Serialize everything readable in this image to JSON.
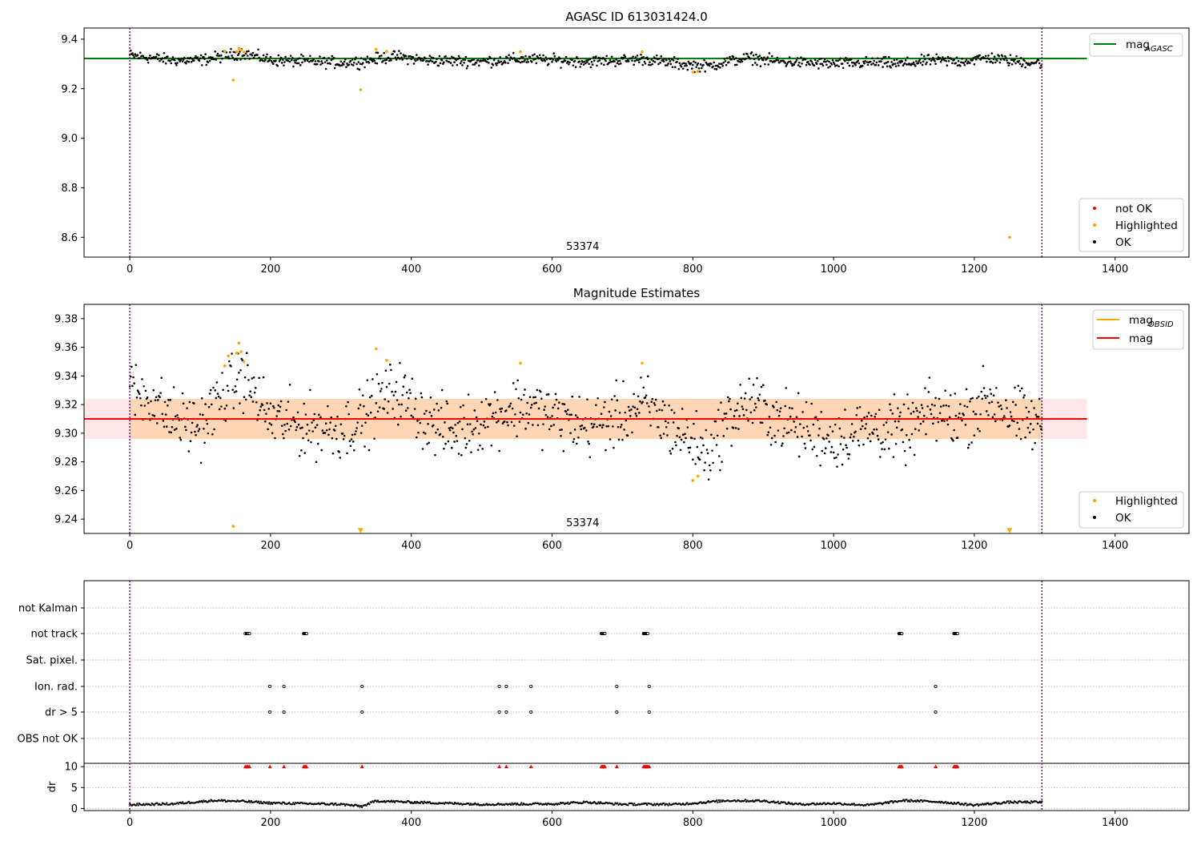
{
  "figure": {
    "obs_label": "53374",
    "vline_color": "#800080"
  },
  "chart_data": [
    {
      "type": "scatter",
      "title": "AGASC ID 613031424.0",
      "xlim": [
        -65,
        1505
      ],
      "ylim": [
        8.52,
        9.445
      ],
      "xticks": [
        0,
        200,
        400,
        600,
        800,
        1000,
        1200,
        1400
      ],
      "yticks": [
        8.6,
        8.8,
        9.0,
        9.2,
        9.4
      ],
      "ytick_labels": [
        "8.6",
        "8.8",
        "9.0",
        "9.2",
        "9.4"
      ],
      "vlines": [
        0,
        1296
      ],
      "hline": {
        "value": 9.322,
        "x_range": [
          -65,
          1360
        ],
        "color": "#008000"
      },
      "legend_lines": [
        {
          "base": "mag",
          "sub": "AGASC",
          "color": "#008000"
        }
      ],
      "legend_points": [
        {
          "label": "not OK",
          "color": "#ff0000"
        },
        {
          "label": "Highlighted",
          "color": "#ffa500"
        },
        {
          "label": "OK",
          "color": "#000000"
        }
      ],
      "series": [
        {
          "name": "OK",
          "color": "#000000",
          "trend": [
            [
              0,
              9.335
            ],
            [
              30,
              9.325
            ],
            [
              60,
              9.315
            ],
            [
              100,
              9.315
            ],
            [
              130,
              9.33
            ],
            [
              160,
              9.345
            ],
            [
              200,
              9.315
            ],
            [
              250,
              9.31
            ],
            [
              300,
              9.305
            ],
            [
              330,
              9.31
            ],
            [
              360,
              9.325
            ],
            [
              380,
              9.33
            ],
            [
              420,
              9.315
            ],
            [
              500,
              9.31
            ],
            [
              560,
              9.32
            ],
            [
              600,
              9.315
            ],
            [
              650,
              9.31
            ],
            [
              700,
              9.315
            ],
            [
              730,
              9.32
            ],
            [
              780,
              9.3
            ],
            [
              800,
              9.295
            ],
            [
              820,
              9.29
            ],
            [
              850,
              9.31
            ],
            [
              880,
              9.325
            ],
            [
              920,
              9.31
            ],
            [
              1000,
              9.3
            ],
            [
              1060,
              9.305
            ],
            [
              1100,
              9.3
            ],
            [
              1140,
              9.315
            ],
            [
              1180,
              9.31
            ],
            [
              1220,
              9.325
            ],
            [
              1260,
              9.31
            ],
            [
              1296,
              9.305
            ]
          ],
          "spread": 0.03
        },
        {
          "name": "Highlighted",
          "color": "#ffa500",
          "points": [
            [
              135,
              9.352
            ],
            [
              147,
              9.235
            ],
            [
              152,
              9.35
            ],
            [
              155,
              9.362
            ],
            [
              158,
              9.356
            ],
            [
              162,
              9.348
            ],
            [
              328,
              9.196
            ],
            [
              350,
              9.359
            ],
            [
              365,
              9.351
            ],
            [
              555,
              9.349
            ],
            [
              728,
              9.349
            ],
            [
              800,
              9.267
            ],
            [
              807,
              9.27
            ],
            [
              1250,
              8.6
            ]
          ]
        }
      ]
    },
    {
      "type": "scatter",
      "title": "Magnitude Estimates",
      "xlim": [
        -65,
        1505
      ],
      "ylim": [
        9.23,
        9.39
      ],
      "xticks": [
        0,
        200,
        400,
        600,
        800,
        1000,
        1200,
        1400
      ],
      "yticks": [
        9.24,
        9.26,
        9.28,
        9.3,
        9.32,
        9.34,
        9.36,
        9.38
      ],
      "ytick_labels": [
        "9.24",
        "9.26",
        "9.28",
        "9.30",
        "9.32",
        "9.34",
        "9.36",
        "9.38"
      ],
      "vlines": [
        0,
        1296
      ],
      "hline": {
        "value": 9.31,
        "x_range": [
          -65,
          1360
        ],
        "color": "#ff0000"
      },
      "bands": [
        {
          "y": [
            9.296,
            9.324
          ],
          "x_range": [
            -65,
            1360
          ],
          "color": "#ffb6c1",
          "opacity": 0.35
        },
        {
          "y": [
            9.296,
            9.324
          ],
          "x_range": [
            0,
            1296
          ],
          "color": "#ffa500",
          "opacity": 0.22
        }
      ],
      "legend_lines": [
        {
          "base": "mag",
          "sub": "OBSID",
          "color": "#ffa500"
        },
        {
          "base": "mag",
          "sub": "",
          "color": "#ff0000"
        }
      ],
      "legend_points": [
        {
          "label": "Highlighted",
          "color": "#ffa500"
        },
        {
          "label": "OK",
          "color": "#000000"
        }
      ],
      "series": [
        {
          "name": "OK",
          "color": "#000000",
          "trend": [
            [
              0,
              9.33
            ],
            [
              30,
              9.325
            ],
            [
              60,
              9.31
            ],
            [
              100,
              9.305
            ],
            [
              130,
              9.325
            ],
            [
              160,
              9.34
            ],
            [
              200,
              9.31
            ],
            [
              250,
              9.305
            ],
            [
              300,
              9.303
            ],
            [
              330,
              9.31
            ],
            [
              360,
              9.325
            ],
            [
              380,
              9.33
            ],
            [
              420,
              9.31
            ],
            [
              460,
              9.3
            ],
            [
              500,
              9.31
            ],
            [
              560,
              9.32
            ],
            [
              600,
              9.312
            ],
            [
              650,
              9.305
            ],
            [
              700,
              9.312
            ],
            [
              730,
              9.32
            ],
            [
              780,
              9.3
            ],
            [
              800,
              9.295
            ],
            [
              820,
              9.285
            ],
            [
              850,
              9.31
            ],
            [
              880,
              9.322
            ],
            [
              920,
              9.31
            ],
            [
              1000,
              9.296
            ],
            [
              1060,
              9.305
            ],
            [
              1100,
              9.3
            ],
            [
              1140,
              9.315
            ],
            [
              1180,
              9.31
            ],
            [
              1220,
              9.325
            ],
            [
              1260,
              9.31
            ],
            [
              1296,
              9.305
            ]
          ],
          "spread": 0.028
        },
        {
          "name": "Highlighted",
          "color": "#ffa500",
          "points": [
            [
              135,
              9.347
            ],
            [
              140,
              9.354
            ],
            [
              147,
              9.235
            ],
            [
              152,
              9.356
            ],
            [
              155,
              9.363
            ],
            [
              158,
              9.357
            ],
            [
              162,
              9.35
            ],
            [
              350,
              9.359
            ],
            [
              365,
              9.351
            ],
            [
              555,
              9.349
            ],
            [
              728,
              9.349
            ],
            [
              800,
              9.267
            ],
            [
              807,
              9.27
            ]
          ]
        },
        {
          "name": "Highlighted",
          "color": "#ffa500",
          "marker": "triangle-down",
          "points": [
            [
              328,
              9.232
            ],
            [
              1250,
              9.232
            ]
          ]
        }
      ]
    },
    {
      "type": "scatter",
      "xlim": [
        -65,
        1505
      ],
      "xticks": [
        0,
        200,
        400,
        600,
        800,
        1000,
        1200,
        1400
      ],
      "vlines": [
        0,
        1296
      ],
      "categories": [
        "not Kalman",
        "not track",
        "Sat. pixel.",
        "Ion. rad.",
        "dr > 5",
        "OBS not OK"
      ],
      "flags": {
        "not Kalman": [],
        "not track": [
          164,
          166,
          167,
          168,
          170,
          247,
          248,
          249,
          250,
          251,
          670,
          671,
          672,
          673,
          674,
          675,
          730,
          731,
          732,
          733,
          734,
          735,
          736,
          1093,
          1094,
          1095,
          1096,
          1097,
          1171,
          1172,
          1173,
          1174,
          1175,
          1176
        ],
        "Sat. pixel.": [],
        "Ion. rad.": [
          199,
          219,
          330,
          525,
          535,
          570,
          692,
          738,
          1145
        ],
        "dr > 5": [
          199,
          219,
          330,
          525,
          535,
          570,
          692,
          738,
          1145
        ],
        "OBS not OK": []
      },
      "dr": {
        "ylabel": "dr",
        "ylim": [
          -0.5,
          10.8
        ],
        "yticks": [
          0,
          5,
          10
        ],
        "ytick_labels": [
          "0",
          "5",
          "10"
        ],
        "trend": [
          [
            0,
            0.9
          ],
          [
            60,
            1.1
          ],
          [
            120,
            1.9
          ],
          [
            160,
            1.7
          ],
          [
            200,
            1.3
          ],
          [
            300,
            1.0
          ],
          [
            330,
            0.5
          ],
          [
            350,
            1.8
          ],
          [
            400,
            1.5
          ],
          [
            500,
            1.0
          ],
          [
            600,
            1.1
          ],
          [
            650,
            1.5
          ],
          [
            700,
            1.0
          ],
          [
            780,
            1.0
          ],
          [
            850,
            1.9
          ],
          [
            900,
            1.8
          ],
          [
            950,
            1.0
          ],
          [
            1000,
            1.2
          ],
          [
            1050,
            0.8
          ],
          [
            1100,
            1.9
          ],
          [
            1150,
            1.6
          ],
          [
            1200,
            0.8
          ],
          [
            1250,
            1.5
          ],
          [
            1296,
            1.5
          ]
        ],
        "outliers_color": "#ff0000",
        "outliers": [
          164,
          166,
          167,
          168,
          170,
          199,
          219,
          247,
          248,
          249,
          250,
          251,
          330,
          525,
          535,
          570,
          670,
          671,
          672,
          673,
          674,
          675,
          692,
          730,
          731,
          732,
          733,
          734,
          735,
          736,
          738,
          1093,
          1094,
          1095,
          1096,
          1097,
          1145,
          1171,
          1172,
          1173,
          1174,
          1175,
          1176
        ]
      }
    }
  ]
}
